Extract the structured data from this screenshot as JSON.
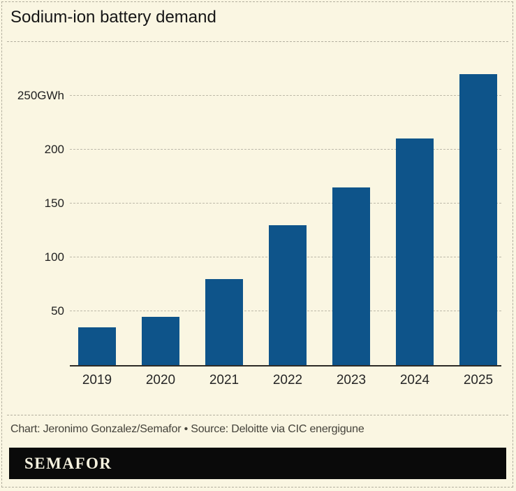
{
  "header": {
    "title": "Sodium-ion battery demand"
  },
  "footer": {
    "credit": "Chart: Jeronimo Gonzalez/Semafor • Source: Deloitte via CIC energigune",
    "logo": "SEMAFOR"
  },
  "colors": {
    "background": "#FAF6E2",
    "bar": "#0E548A",
    "logo_bar": "#0A0A0A",
    "logo_text": "#F6F2DF",
    "gridline": "#BDB9A9",
    "axis_line": "#2E2C27",
    "text": "#161616"
  },
  "chart_data": {
    "type": "bar",
    "title": "Sodium-ion battery demand",
    "categories": [
      "2019",
      "2020",
      "2021",
      "2022",
      "2023",
      "2024",
      "2025"
    ],
    "values": [
      35,
      45,
      80,
      130,
      165,
      210,
      270
    ],
    "unit": "GWh",
    "xlabel": "",
    "ylabel": "GWh",
    "ylim": [
      0,
      275
    ],
    "yticks": [
      {
        "value": 50,
        "label": "50"
      },
      {
        "value": 100,
        "label": "100"
      },
      {
        "value": 150,
        "label": "150"
      },
      {
        "value": 200,
        "label": "200"
      },
      {
        "value": 250,
        "label": "250GWh"
      }
    ],
    "grid": "horizontal-dashed",
    "legend": "none"
  }
}
